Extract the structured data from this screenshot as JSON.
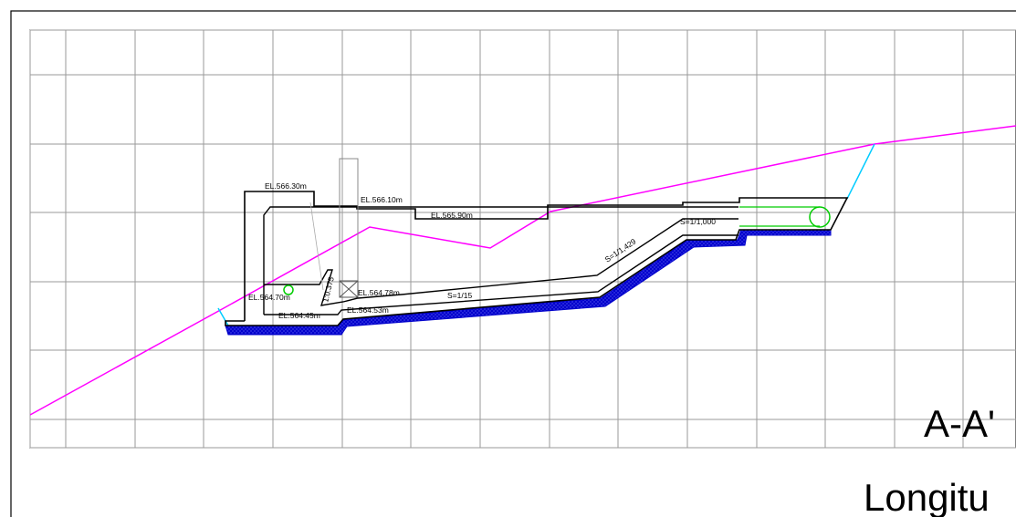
{
  "drawing": {
    "section_title": "A-A'",
    "subtitle": "Longitu",
    "labels": {
      "el_566_30": "EL.566.30m",
      "el_566_10": "EL.566.10m",
      "el_565_90": "EL.565.90m",
      "el_564_78": "EL.564.78m",
      "el_564_70": "EL.564.70m",
      "el_564_53": "EL.564.53m",
      "el_564_45": "EL.564.45m",
      "slope_1_0375": "1:0.375",
      "slope_1_15": "S=1/15",
      "slope_1_1429": "S=1/1,429",
      "slope_1_1000": "S=1/1,000"
    }
  },
  "colors": {
    "ground_line": "#ff00ff",
    "structure": "#000000",
    "foundation": "#0000cc",
    "pipe": "#00cc00",
    "cut_slope": "#00ccff",
    "grid": "#9a9a9a",
    "frame": "#000000"
  }
}
